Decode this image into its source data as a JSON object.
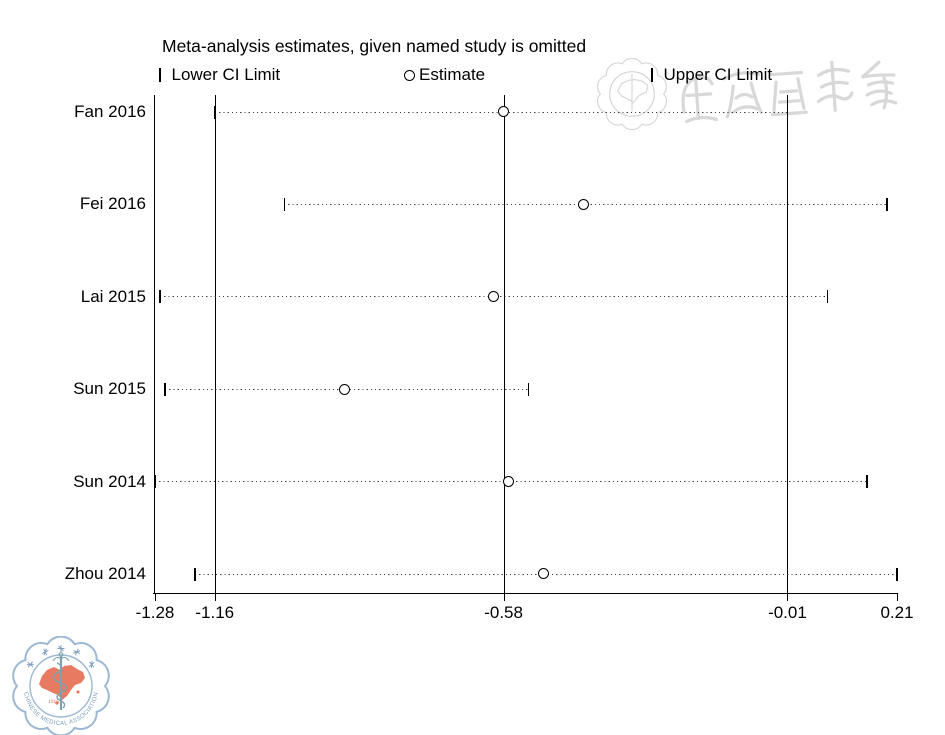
{
  "chart_data": {
    "type": "leave-one-out-forest",
    "title": "Meta-analysis estimates, given named study is omitted",
    "legend": [
      {
        "marker": "tick",
        "label": "Lower CI Limit"
      },
      {
        "marker": "circle",
        "label": "Estimate"
      },
      {
        "marker": "tick",
        "label": "Upper CI Limit"
      }
    ],
    "studies": [
      "Fan 2016",
      "Fei 2016",
      "Lai 2015",
      "Sun 2015",
      "Sun 2014",
      "Zhou 2014"
    ],
    "series": [
      {
        "study": "Fan 2016",
        "lower": -1.16,
        "estimate": -0.58,
        "upper": -0.01
      },
      {
        "study": "Fei 2016",
        "lower": -1.02,
        "estimate": -0.42,
        "upper": 0.19
      },
      {
        "study": "Lai 2015",
        "lower": -1.27,
        "estimate": -0.6,
        "upper": 0.07
      },
      {
        "study": "Sun 2015",
        "lower": -1.26,
        "estimate": -0.9,
        "upper": -0.53
      },
      {
        "study": "Sun 2014",
        "lower": -1.28,
        "estimate": -0.57,
        "upper": 0.15
      },
      {
        "study": "Zhou 2014",
        "lower": -1.2,
        "estimate": -0.5,
        "upper": 0.21
      }
    ],
    "x_ticks": [
      -1.28,
      -1.16,
      -0.58,
      -0.01,
      0.21
    ],
    "x_tick_labels": [
      "-1.28",
      "-1.16",
      "-0.58",
      "-0.01",
      "0.21"
    ],
    "reference_lines": [
      -1.16,
      -0.58,
      -0.01
    ],
    "xlim": [
      -1.28,
      0.21
    ],
    "grid": false,
    "line_style": "dotted",
    "marker_color": "#000000"
  },
  "watermarks": {
    "top_right": {
      "chinese_text": "中华医学会",
      "color": "#d0d0d0"
    },
    "bottom_left_logo": {
      "organization": "CHINESE MEDICAL ASSOCIATION",
      "chinese_name": "中华医学会",
      "year": "1915",
      "border_color": "#9db8d2",
      "map_color": "#e87a62",
      "staff_color": "#7ba3ad",
      "year_color": "#d9604c",
      "text_color": "#7f9fc0"
    }
  }
}
